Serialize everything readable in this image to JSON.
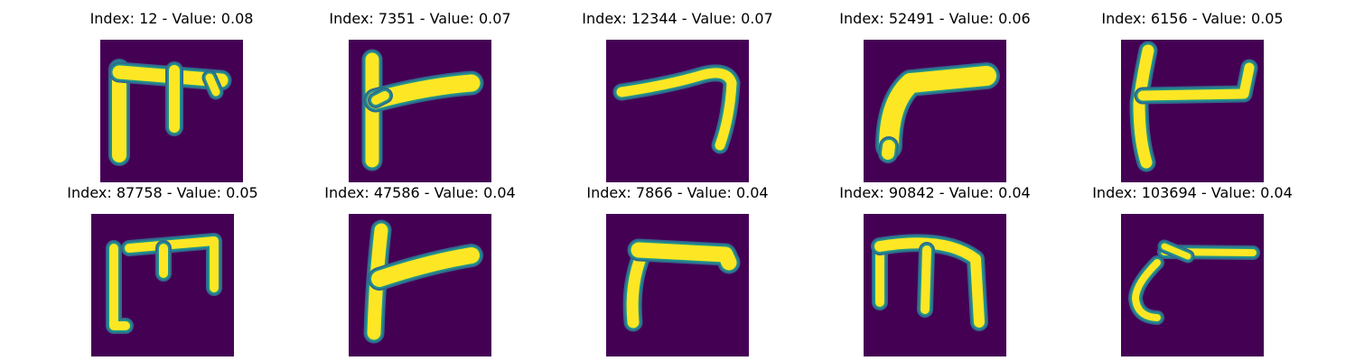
{
  "figure": {
    "background": "#ffffff",
    "colormap": [
      "#440154",
      "#31688e",
      "#21918c",
      "#35b779",
      "#fde725"
    ]
  },
  "chart_data": {
    "type": "image_grid",
    "grid": {
      "rows": 2,
      "cols": 5
    },
    "axes_visible": false,
    "items": [
      {
        "title": "Index: 12 - Value: 0.08",
        "index": 12,
        "value": 0.08,
        "glyph": "hooked-comb-three-prong"
      },
      {
        "title": "Index: 7351 - Value: 0.07",
        "index": 7351,
        "value": 0.07,
        "glyph": "vertical-with-right-arm"
      },
      {
        "title": "Index: 12344 - Value: 0.07",
        "index": 12344,
        "value": 0.07,
        "glyph": "horizontal-wave-with-down-tail"
      },
      {
        "title": "Index: 52491 - Value: 0.06",
        "index": 52491,
        "value": 0.06,
        "glyph": "thick-bent-stroke"
      },
      {
        "title": "Index: 6156 - Value: 0.05",
        "index": 6156,
        "value": 0.05,
        "glyph": "slanted-vertical-with-arm"
      },
      {
        "title": "Index: 87758 - Value: 0.05",
        "index": 87758,
        "value": 0.05,
        "glyph": "comb-with-three-legs"
      },
      {
        "title": "Index: 47586 - Value: 0.04",
        "index": 47586,
        "value": 0.04,
        "glyph": "vertical-with-right-arm-2"
      },
      {
        "title": "Index: 7866 - Value: 0.04",
        "index": 7866,
        "value": 0.04,
        "glyph": "bent-hook-stroke"
      },
      {
        "title": "Index: 90842 - Value: 0.04",
        "index": 90842,
        "value": 0.04,
        "glyph": "three-legged-arch"
      },
      {
        "title": "Index: 103694 - Value: 0.04",
        "index": 103694,
        "value": 0.04,
        "glyph": "curve-with-horizontal-bar"
      }
    ]
  }
}
